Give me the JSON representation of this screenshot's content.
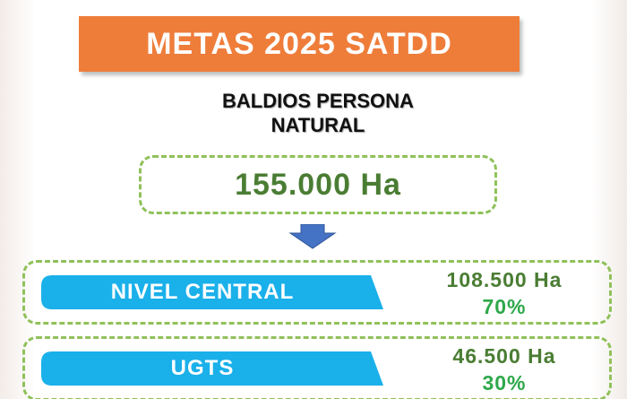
{
  "header": {
    "title": "METAS 2025 SATDD",
    "subtitle": [
      "BALDIOS PERSONA",
      "NATURAL"
    ]
  },
  "total": "155.000 Ha",
  "items": [
    {
      "label": "NIVEL CENTRAL",
      "amount": "108.500 Ha",
      "percent": "70%"
    },
    {
      "label": "UGTS",
      "amount": "46.500 Ha",
      "percent": "30%"
    }
  ]
}
